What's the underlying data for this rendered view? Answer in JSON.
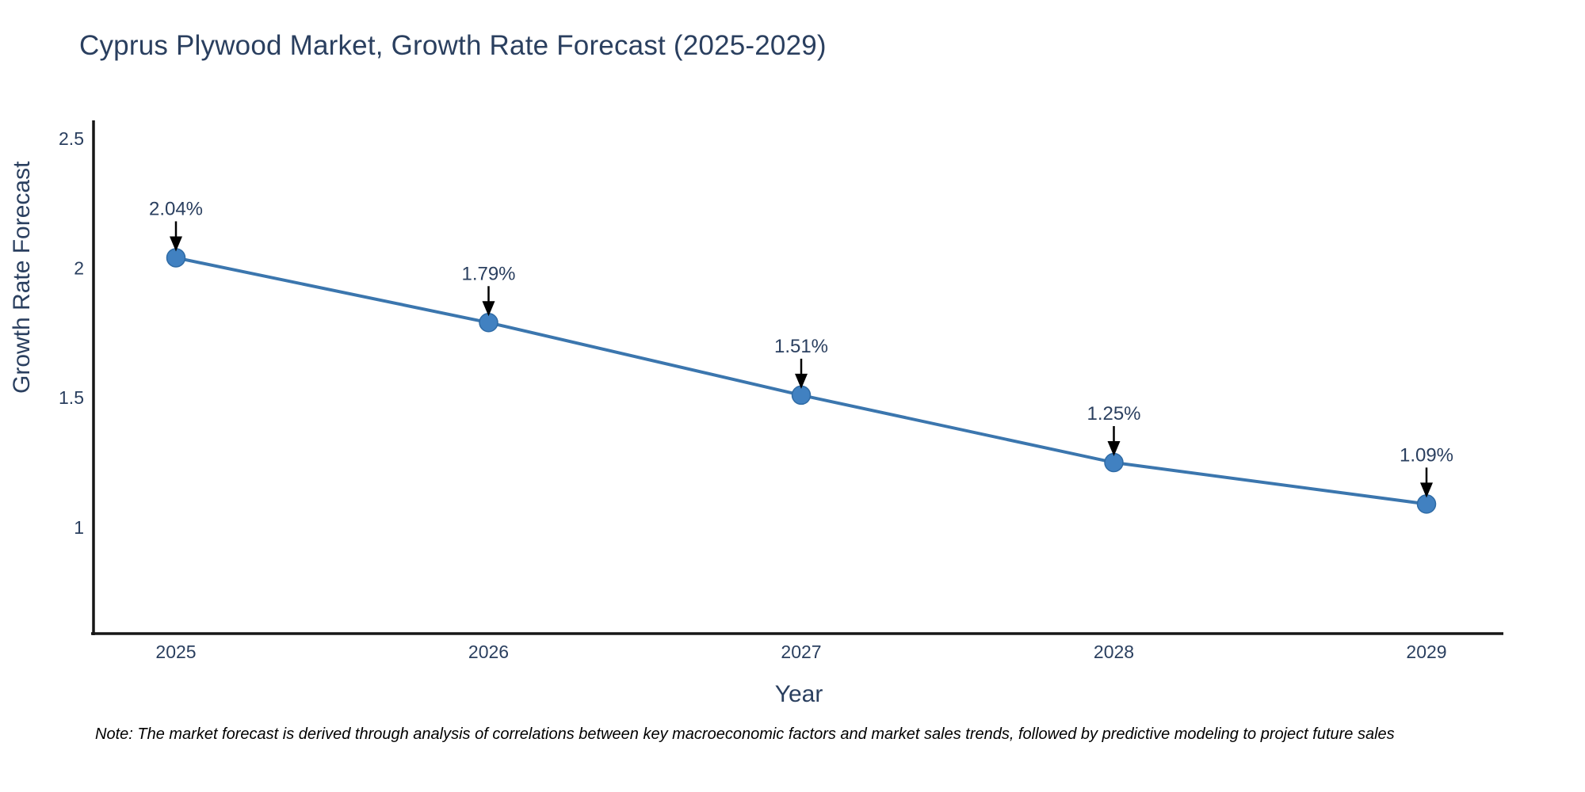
{
  "header": {
    "title": "Cyprus Plywood Market, Growth Rate Forecast (2025-2029)"
  },
  "chart_data": {
    "type": "line",
    "title": "Cyprus Plywood Market, Growth Rate Forecast (2025-2029)",
    "categories": [
      "2025",
      "2026",
      "2027",
      "2028",
      "2029"
    ],
    "series": [
      {
        "name": "Growth Rate Forecast",
        "values": [
          2.04,
          1.79,
          1.51,
          1.25,
          1.09
        ]
      }
    ],
    "point_labels": [
      "2.04%",
      "1.79%",
      "1.51%",
      "1.25%",
      "1.09%"
    ],
    "xlabel": "Year",
    "ylabel": "Growth Rate Forecast",
    "ylim": [
      0.59,
      2.57
    ],
    "yticks": [
      1,
      1.5,
      2,
      2.5
    ],
    "ytick_labels": [
      "1",
      "1.5",
      "2",
      "2.5"
    ],
    "grid": false,
    "legend_position": "none",
    "annotation_arrows": true,
    "colors": {
      "line": "#3b76ae",
      "marker_fill": "#4181c1",
      "marker_edge": "#2f6ba5",
      "axis": "#161616",
      "text": "#2a3f5f",
      "arrow": "#000000"
    }
  },
  "note": {
    "text": "Note: The market forecast is derived through analysis of correlations between key macroeconomic factors and market sales trends, followed by predictive modeling to project future sales"
  }
}
